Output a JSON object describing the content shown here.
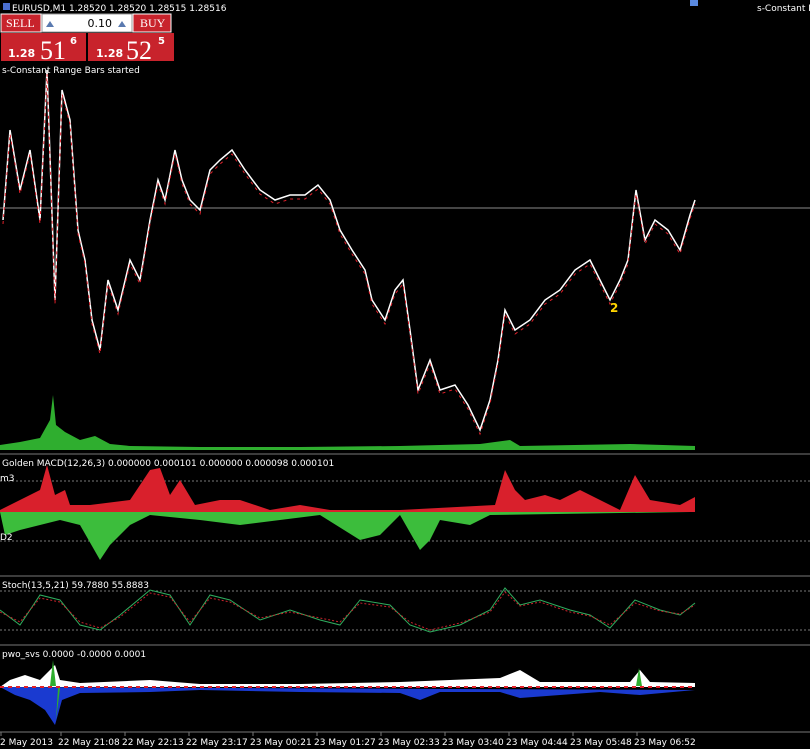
{
  "header": {
    "symbol_info": "EURUSD,M1  1.28520 1.28520 1.28515 1.28516",
    "right_label": "s-Constant R"
  },
  "trade_panel": {
    "sell": "SELL",
    "lot": "0.10",
    "buy": "BUY",
    "bid": {
      "prefix": "1.28",
      "big": "51",
      "small": "6"
    },
    "ask": {
      "prefix": "1.28",
      "big": "52",
      "small": "5"
    }
  },
  "main_chart": {
    "status": "s-Constant Range Bars started",
    "marker": "2"
  },
  "indicators": [
    {
      "title": "Golden MACD(12,26,3) 0.000000 0.000101 0.000000 0.000098 0.000101",
      "upper_label": "m3",
      "lower_label": "D2"
    },
    {
      "title": "Stoch(13,5,21) 59.7880 55.8883"
    },
    {
      "title": "pwo_svs 0.0000 -0.0000 0.0001"
    }
  ],
  "time_axis": [
    "2 May 2013",
    "22 May 21:08",
    "22 May 22:13",
    "22 May 23:17",
    "23 May 00:21",
    "23 May 01:27",
    "23 May 02:33",
    "23 May 03:40",
    "23 May 04:44",
    "23 May 05:48",
    "23 May 06:52"
  ]
}
